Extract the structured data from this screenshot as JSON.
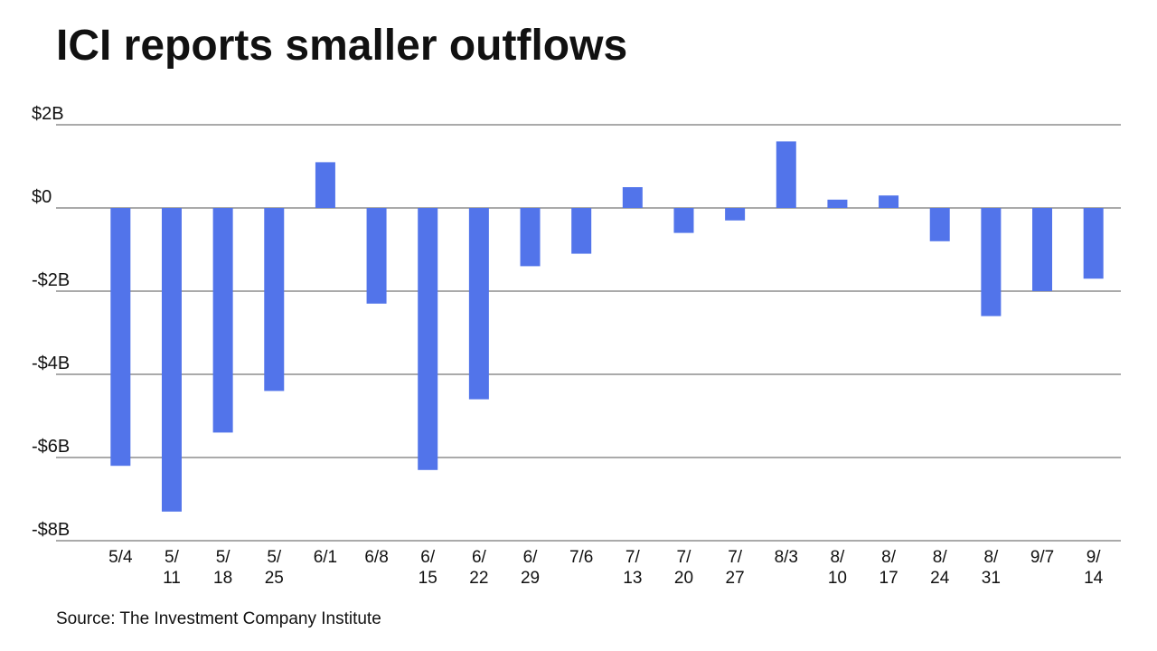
{
  "chart_data": {
    "type": "bar",
    "title": "ICI reports smaller outflows",
    "source": "Source: The Investment Company Institute",
    "categories": [
      "5/4",
      "5/11",
      "5/18",
      "5/25",
      "6/1",
      "6/8",
      "6/15",
      "6/22",
      "6/29",
      "7/6",
      "7/13",
      "7/20",
      "7/27",
      "8/3",
      "8/10",
      "8/17",
      "8/24",
      "8/31",
      "9/7",
      "9/14"
    ],
    "values": [
      -6.2,
      -7.3,
      -5.4,
      -4.4,
      1.1,
      -2.3,
      -6.3,
      -4.6,
      -1.4,
      -1.1,
      0.5,
      -0.6,
      -0.3,
      1.6,
      0.2,
      0.3,
      -0.8,
      -2.6,
      -2.0,
      -1.7
    ],
    "color": "#5274ea",
    "ylim": [
      -8,
      2
    ],
    "yticks": [
      {
        "value": -8,
        "label": "-$8B"
      },
      {
        "value": -6,
        "label": "-$6B"
      },
      {
        "value": -4,
        "label": "-$4B"
      },
      {
        "value": -2,
        "label": "-$2B"
      },
      {
        "value": 0,
        "label": "$0"
      },
      {
        "value": 2,
        "label": "$2B"
      }
    ],
    "grid": true
  }
}
